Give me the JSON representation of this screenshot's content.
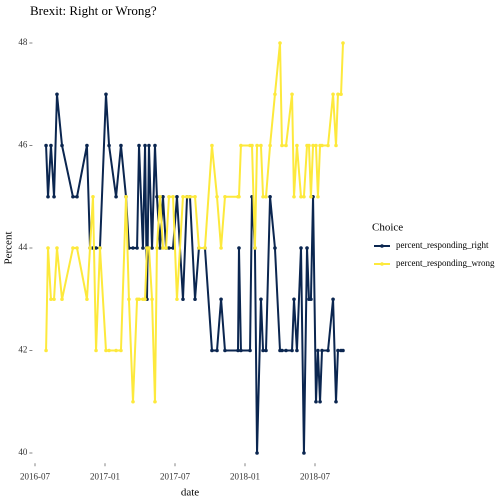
{
  "chart_data": {
    "type": "line",
    "title": "Brexit: Right or Wrong?",
    "x_label": "date",
    "y_label": "Percent",
    "legend_title": "Choice",
    "legend_position": "right",
    "grid": false,
    "x": [
      2016.579,
      2016.593,
      2016.614,
      2016.636,
      2016.657,
      2016.693,
      2016.771,
      2016.8,
      2016.871,
      2016.893,
      2016.914,
      2016.936,
      2016.964,
      2017.007,
      2017.029,
      2017.079,
      2017.114,
      2017.15,
      2017.171,
      2017.2,
      2017.229,
      2017.243,
      2017.271,
      2017.286,
      2017.3,
      2017.314,
      2017.336,
      2017.357,
      2017.371,
      2017.393,
      2017.414,
      2017.436,
      2017.457,
      2017.486,
      2017.514,
      2017.557,
      2017.586,
      2017.607,
      2017.643,
      2017.671,
      2017.714,
      2017.764,
      2017.8,
      2017.829,
      2017.857,
      2017.95,
      2017.957,
      2017.971,
      2018.036,
      2018.05,
      2018.071,
      2018.086,
      2018.114,
      2018.129,
      2018.15,
      2018.179,
      2018.214,
      2018.25,
      2018.264,
      2018.293,
      2018.336,
      2018.35,
      2018.371,
      2018.4,
      2018.421,
      2018.443,
      2018.457,
      2018.471,
      2018.486,
      2018.507,
      2018.521,
      2018.536,
      2018.55,
      2018.593,
      2018.629,
      2018.65,
      2018.664,
      2018.686,
      2018.7
    ],
    "series": [
      {
        "name": "percent_responding_right",
        "color": "#0b2650",
        "values": [
          46,
          45,
          46,
          45,
          47,
          46,
          45,
          45,
          46,
          44,
          44,
          44,
          44,
          47,
          46,
          45,
          46,
          45,
          44,
          44,
          44,
          46,
          44,
          46,
          43,
          46,
          44,
          46,
          45,
          44,
          45,
          44,
          44,
          44,
          45,
          43,
          45,
          45,
          43,
          44,
          44,
          42,
          42,
          43,
          42,
          42,
          44,
          42,
          42,
          45,
          44,
          40,
          43,
          42,
          42,
          45,
          44,
          42,
          42,
          42,
          42,
          43,
          42,
          44,
          40,
          44,
          43,
          43,
          45,
          41,
          42,
          41,
          42,
          42,
          43,
          41,
          42,
          42,
          42
        ]
      },
      {
        "name": "percent_responding_wrong",
        "color": "#fde93c",
        "values": [
          42,
          44,
          43,
          43,
          44,
          43,
          44,
          44,
          43,
          44,
          45,
          42,
          44,
          42,
          42,
          42,
          42,
          45,
          43,
          41,
          43,
          43,
          43,
          43,
          44,
          44,
          43,
          41,
          44,
          45,
          44,
          44,
          45,
          45,
          43,
          45,
          45,
          45,
          45,
          44,
          44,
          46,
          45,
          44,
          45,
          45,
          45,
          46,
          46,
          46,
          44,
          46,
          46,
          45,
          45,
          46,
          47,
          48,
          46,
          46,
          47,
          45,
          46,
          45,
          45,
          46,
          46,
          45,
          46,
          46,
          45,
          46,
          46,
          46,
          47,
          46,
          47,
          47,
          48
        ]
      }
    ],
    "xlim": [
      2016.46,
      2018.75
    ],
    "xticks": [
      {
        "value": 2016.5,
        "label": "2016-07"
      },
      {
        "value": 2017.0,
        "label": "2017-01"
      },
      {
        "value": 2017.5,
        "label": "2017-07"
      },
      {
        "value": 2018.0,
        "label": "2018-01"
      },
      {
        "value": 2018.5,
        "label": "2018-07"
      }
    ],
    "ylim": [
      39.8,
      48.2
    ],
    "yticks": [
      40,
      42,
      44,
      46,
      48
    ]
  }
}
